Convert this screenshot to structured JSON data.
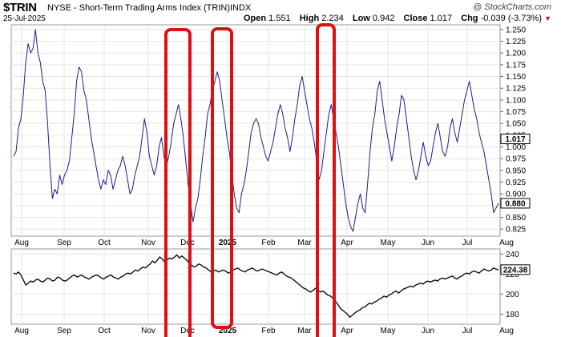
{
  "header": {
    "symbol": "$TRIN",
    "name": "NYSE - Short-Term Trading Arms Index (TRIN)",
    "exchange": "INDX",
    "brand": "@ StockCharts.com",
    "date": "25-Jul-2025",
    "open_label": "Open",
    "open_value": "1.551",
    "high_label": "High",
    "high_value": "2.234",
    "low_label": "Low",
    "low_value": "0.942",
    "close_label": "Close",
    "close_value": "1.017",
    "chg_label": "Chg",
    "chg_value": "-0.039 (-3.73%)",
    "chg_direction_icon": "down-triangle-icon"
  },
  "colors": {
    "trin_line": "#1b1f8f",
    "spx_line": "#000000",
    "highlight": "#dd1111",
    "grid": "#e6e6e6"
  },
  "chart_data": [
    {
      "type": "line",
      "title": "$TRIN",
      "xlabel": "",
      "ylabel": "",
      "x_tick_labels": [
        "Aug",
        "Sep",
        "Oct",
        "Nov",
        "Dec",
        "2025",
        "Feb",
        "Mar",
        "Apr",
        "May",
        "Jun",
        "Jul",
        "Aug"
      ],
      "y_tick_labels": [
        "0.825",
        "0.850",
        "0.875",
        "0.900",
        "0.925",
        "0.950",
        "0.975",
        "1.000",
        "1.025",
        "1.050",
        "1.075",
        "1.100",
        "1.125",
        "1.150",
        "1.175",
        "1.200",
        "1.225",
        "1.250"
      ],
      "ylim": [
        0.81,
        1.26
      ],
      "grid": true,
      "last_value_label": "1.017",
      "secondary_label": "0.880",
      "series": [
        {
          "values": [
            0.98,
            0.99,
            1.04,
            1.06,
            1.11,
            1.18,
            1.22,
            1.2,
            1.21,
            1.25,
            1.2,
            1.18,
            1.14,
            1.12,
            1.05,
            0.96,
            0.89,
            0.91,
            0.9,
            0.94,
            0.92,
            0.94,
            0.95,
            0.97,
            1.02,
            1.07,
            1.14,
            1.17,
            1.16,
            1.12,
            1.1,
            1.06,
            1.02,
            0.99,
            0.96,
            0.93,
            0.91,
            0.93,
            0.92,
            0.95,
            0.94,
            0.91,
            0.93,
            0.95,
            0.96,
            0.98,
            0.96,
            0.93,
            0.9,
            0.91,
            0.94,
            0.96,
            0.98,
            1.02,
            1.06,
            1.03,
            0.98,
            0.96,
            0.94,
            0.96,
            1.0,
            1.02,
            0.98,
            0.96,
            0.98,
            1.01,
            1.05,
            1.07,
            1.09,
            1.06,
            1.02,
            0.97,
            0.92,
            0.88,
            0.84,
            0.87,
            0.89,
            0.93,
            0.98,
            1.02,
            1.07,
            1.09,
            1.12,
            1.14,
            1.16,
            1.14,
            1.1,
            1.06,
            1.02,
            0.99,
            0.94,
            0.9,
            0.87,
            0.86,
            0.9,
            0.92,
            0.95,
            0.99,
            1.03,
            1.05,
            1.06,
            1.05,
            1.02,
            1.0,
            0.98,
            0.97,
            0.99,
            1.01,
            1.04,
            1.07,
            1.09,
            1.07,
            1.04,
            1.02,
            0.99,
            1.02,
            1.06,
            1.09,
            1.13,
            1.15,
            1.12,
            1.09,
            1.06,
            1.04,
            1.01,
            0.97,
            0.93,
            0.95,
            0.99,
            1.03,
            1.07,
            1.09,
            1.06,
            1.03,
            1.0,
            0.96,
            0.92,
            0.88,
            0.85,
            0.83,
            0.82,
            0.85,
            0.88,
            0.9,
            0.87,
            0.86,
            0.92,
            0.99,
            1.04,
            1.07,
            1.12,
            1.14,
            1.1,
            1.06,
            1.03,
            1.0,
            0.97,
            1.0,
            1.04,
            1.07,
            1.11,
            1.1,
            1.06,
            1.02,
            0.98,
            0.95,
            0.93,
            0.95,
            0.98,
            1.01,
            0.98,
            0.96,
            0.97,
            1.0,
            1.03,
            1.05,
            1.02,
            0.99,
            0.98,
            1.0,
            1.04,
            1.06,
            1.03,
            1.01,
            1.04,
            1.07,
            1.1,
            1.12,
            1.14,
            1.11,
            1.08,
            1.06,
            1.03,
            1.01,
            0.99,
            0.96,
            0.93,
            0.9,
            0.86,
            0.87,
            0.88
          ]
        }
      ]
    },
    {
      "type": "line",
      "title": "",
      "xlabel": "",
      "ylabel": "",
      "x_tick_labels": [
        "Aug",
        "Sep",
        "Oct",
        "Nov",
        "Dec",
        "2025",
        "Feb",
        "Mar",
        "Apr",
        "May",
        "Jun",
        "Jul",
        "Aug"
      ],
      "y_tick_labels": [
        "180",
        "200",
        "220",
        "240"
      ],
      "ylim": [
        170,
        245
      ],
      "grid": true,
      "last_value_label": "224.38",
      "series": [
        {
          "values": [
            221,
            220,
            222,
            219,
            214,
            209,
            211,
            213,
            212,
            214,
            215,
            213,
            212,
            214,
            216,
            215,
            213,
            214,
            217,
            216,
            214,
            213,
            214,
            216,
            218,
            219,
            217,
            218,
            219,
            217,
            216,
            215,
            217,
            218,
            219,
            218,
            216,
            215,
            217,
            218,
            219,
            217,
            216,
            215,
            217,
            218,
            220,
            221,
            220,
            222,
            224,
            223,
            225,
            227,
            226,
            228,
            230,
            233,
            231,
            234,
            237,
            235,
            232,
            234,
            236,
            235,
            237,
            239,
            236,
            238,
            236,
            234,
            231,
            229,
            227,
            228,
            230,
            229,
            227,
            226,
            224,
            222,
            223,
            224,
            222,
            223,
            224,
            223,
            221,
            222,
            224,
            225,
            226,
            224,
            223,
            222,
            224,
            225,
            226,
            224,
            223,
            224,
            225,
            224,
            223,
            222,
            221,
            220,
            219,
            221,
            222,
            220,
            218,
            217,
            216,
            214,
            212,
            210,
            208,
            206,
            205,
            203,
            202,
            204,
            206,
            204,
            202,
            203,
            201,
            199,
            198,
            196,
            193,
            190,
            186,
            184,
            182,
            180,
            177,
            179,
            181,
            183,
            184,
            186,
            187,
            189,
            191,
            190,
            192,
            193,
            195,
            196,
            198,
            197,
            199,
            200,
            202,
            203,
            201,
            203,
            205,
            206,
            207,
            208,
            207,
            209,
            210,
            211,
            210,
            212,
            213,
            212,
            213,
            214,
            213,
            215,
            216,
            215,
            216,
            217,
            218,
            216,
            215,
            217,
            218,
            220,
            221,
            220,
            222,
            223,
            222,
            221,
            223,
            225,
            224,
            223,
            224,
            226,
            225,
            224
          ]
        }
      ]
    }
  ]
}
